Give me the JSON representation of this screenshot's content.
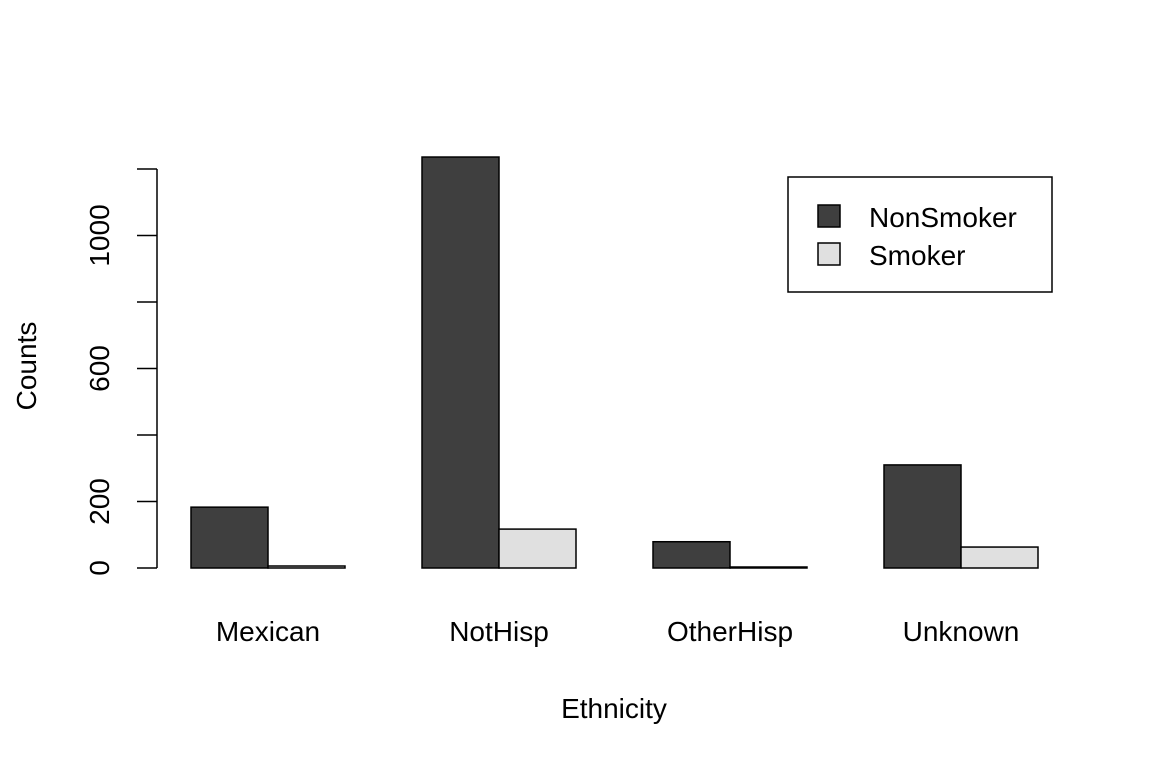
{
  "chart_data": {
    "type": "bar",
    "categories": [
      "Mexican",
      "NotHisp",
      "OtherHisp",
      "Unknown"
    ],
    "series": [
      {
        "name": "NonSmoker",
        "values": [
          183,
          1236,
          79,
          310
        ],
        "color": "#3f3f3f"
      },
      {
        "name": "Smoker",
        "values": [
          6,
          117,
          3,
          63
        ],
        "color": "#e0e0e0"
      }
    ],
    "xlabel": "Ethnicity",
    "ylabel": "Counts",
    "yticks": [
      0,
      200,
      400,
      600,
      800,
      1000,
      1200
    ],
    "ytick_labels": [
      "0",
      "200",
      "",
      "600",
      "",
      "1000",
      ""
    ],
    "ylim": [
      0,
      1250
    ],
    "legend_position": "top-right",
    "grid": false
  }
}
